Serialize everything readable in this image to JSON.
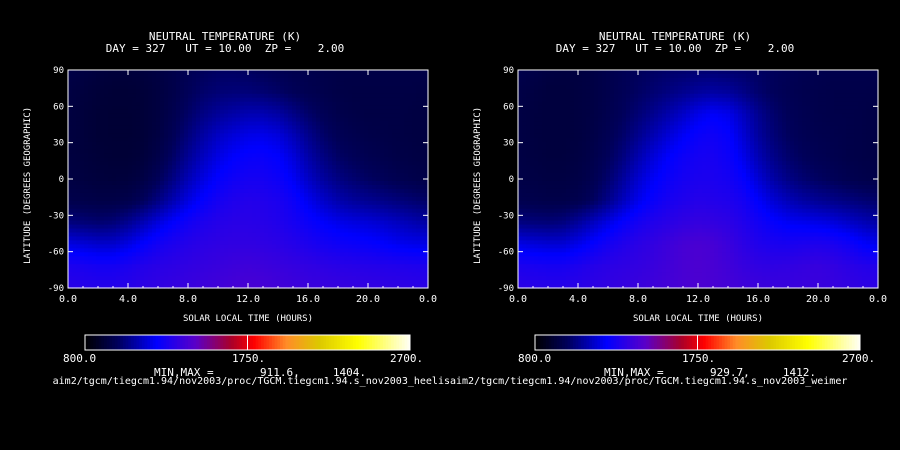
{
  "chart_data": [
    {
      "type": "heatmap",
      "title": "NEUTRAL TEMPERATURE (K)",
      "subtitle": "DAY = 327   UT = 10.00  ZP =    2.00",
      "xlabel": "SOLAR LOCAL TIME (HOURS)",
      "ylabel": "LATITUDE (DEGREES GEOGRAPHIC)",
      "xlim": [
        0,
        24
      ],
      "ylim": [
        -90,
        90
      ],
      "x_ticks": [
        "0.0",
        "4.0",
        "8.0",
        "12.0",
        "16.0",
        "20.0",
        "0.0"
      ],
      "y_ticks": [
        "90",
        "60",
        "30",
        "0",
        "-30",
        "-60",
        "-90"
      ],
      "colorbar": {
        "min": 800.0,
        "mid": 1750.0,
        "max": 2700.0,
        "labels": [
          "800.0",
          "1750.",
          "2700."
        ]
      },
      "minmax_text": "MIN,MAX =       911.6,     1404.",
      "path_text": "aim2/tgcm/tiegcm1.94/nov2003/proc/TGCM.tiegcm1.94.s_nov2003_heelis",
      "field": [
        [
          950,
          940,
          930,
          925,
          925,
          930,
          940,
          955,
          975,
          990,
          1000,
          1000,
          995,
          985,
          975,
          965,
          960,
          955,
          950,
          950,
          950,
          950,
          950,
          950,
          950
        ],
        [
          940,
          930,
          920,
          915,
          915,
          920,
          935,
          955,
          985,
          1010,
          1025,
          1030,
          1030,
          1020,
          1005,
          985,
          970,
          960,
          950,
          945,
          945,
          945,
          945,
          945,
          940
        ],
        [
          935,
          925,
          915,
          912,
          912,
          918,
          935,
          965,
          1005,
          1045,
          1075,
          1095,
          1110,
          1110,
          1090,
          1050,
          1010,
          980,
          960,
          950,
          945,
          945,
          945,
          940,
          935
        ],
        [
          935,
          925,
          915,
          912,
          912,
          918,
          940,
          980,
          1035,
          1090,
          1135,
          1165,
          1185,
          1190,
          1170,
          1120,
          1060,
          1010,
          980,
          965,
          955,
          950,
          945,
          940,
          935
        ],
        [
          935,
          928,
          920,
          915,
          915,
          925,
          955,
          1005,
          1070,
          1130,
          1180,
          1215,
          1235,
          1240,
          1220,
          1170,
          1100,
          1045,
          1005,
          985,
          970,
          960,
          950,
          945,
          940
        ],
        [
          940,
          935,
          928,
          925,
          928,
          945,
          985,
          1045,
          1115,
          1175,
          1225,
          1255,
          1270,
          1270,
          1250,
          1205,
          1140,
          1085,
          1045,
          1020,
          1000,
          985,
          970,
          960,
          950
        ],
        [
          960,
          955,
          950,
          950,
          960,
          990,
          1045,
          1110,
          1175,
          1230,
          1270,
          1295,
          1305,
          1300,
          1285,
          1250,
          1195,
          1145,
          1105,
          1080,
          1065,
          1050,
          1035,
          1020,
          1005
        ],
        [
          1040,
          1030,
          1020,
          1030,
          1065,
          1115,
          1170,
          1220,
          1260,
          1290,
          1310,
          1320,
          1320,
          1315,
          1300,
          1275,
          1245,
          1215,
          1190,
          1175,
          1165,
          1150,
          1130,
          1110,
          1090
        ],
        [
          1180,
          1165,
          1150,
          1150,
          1180,
          1225,
          1265,
          1290,
          1310,
          1325,
          1335,
          1340,
          1340,
          1335,
          1325,
          1310,
          1290,
          1270,
          1255,
          1245,
          1235,
          1220,
          1200,
          1190,
          1185
        ],
        [
          1290,
          1280,
          1270,
          1270,
          1285,
          1305,
          1320,
          1330,
          1340,
          1350,
          1360,
          1370,
          1375,
          1370,
          1360,
          1350,
          1340,
          1330,
          1320,
          1315,
          1310,
          1305,
          1300,
          1295,
          1290
        ],
        [
          1320,
          1315,
          1310,
          1310,
          1318,
          1330,
          1340,
          1350,
          1360,
          1370,
          1380,
          1392,
          1400,
          1395,
          1385,
          1375,
          1365,
          1360,
          1355,
          1350,
          1345,
          1340,
          1335,
          1330,
          1325
        ]
      ]
    },
    {
      "type": "heatmap",
      "title": "NEUTRAL TEMPERATURE (K)",
      "subtitle": "DAY = 327   UT = 10.00  ZP =    2.00",
      "xlabel": "SOLAR LOCAL TIME (HOURS)",
      "ylabel": "LATITUDE (DEGREES GEOGRAPHIC)",
      "xlim": [
        0,
        24
      ],
      "ylim": [
        -90,
        90
      ],
      "x_ticks": [
        "0.0",
        "4.0",
        "8.0",
        "12.0",
        "16.0",
        "20.0",
        "0.0"
      ],
      "y_ticks": [
        "90",
        "60",
        "30",
        "0",
        "-30",
        "-60",
        "-90"
      ],
      "colorbar": {
        "min": 800.0,
        "mid": 1750.0,
        "max": 2700.0,
        "labels": [
          "800.0",
          "1750.",
          "2700."
        ]
      },
      "minmax_text": "MIN,MAX =       929.7,     1412.",
      "path_text": "aim2/tgcm/tiegcm1.94/nov2003/proc/TGCM.tiegcm1.94.s_nov2003_weimer",
      "field": [
        [
          960,
          950,
          940,
          935,
          935,
          945,
          960,
          975,
          990,
          1000,
          1010,
          1015,
          1020,
          1020,
          1015,
          1010,
          1000,
          990,
          980,
          970,
          965,
          960,
          960,
          960,
          960
        ],
        [
          950,
          940,
          930,
          930,
          935,
          945,
          960,
          980,
          1000,
          1020,
          1040,
          1060,
          1080,
          1090,
          1080,
          1050,
          1015,
          990,
          975,
          965,
          960,
          955,
          955,
          955,
          950
        ],
        [
          945,
          935,
          930,
          930,
          935,
          945,
          965,
          990,
          1025,
          1060,
          1100,
          1140,
          1185,
          1210,
          1190,
          1130,
          1065,
          1015,
          985,
          970,
          960,
          955,
          955,
          950,
          945
        ],
        [
          945,
          935,
          930,
          930,
          935,
          950,
          975,
          1010,
          1060,
          1110,
          1160,
          1205,
          1240,
          1255,
          1230,
          1160,
          1085,
          1030,
          995,
          975,
          965,
          960,
          955,
          950,
          945
        ],
        [
          945,
          938,
          932,
          932,
          940,
          958,
          990,
          1040,
          1105,
          1165,
          1215,
          1250,
          1270,
          1275,
          1250,
          1190,
          1115,
          1055,
          1015,
          990,
          975,
          965,
          955,
          950,
          945
        ],
        [
          950,
          945,
          940,
          940,
          948,
          970,
          1015,
          1080,
          1150,
          1205,
          1245,
          1270,
          1285,
          1285,
          1270,
          1230,
          1160,
          1095,
          1050,
          1020,
          1000,
          985,
          970,
          960,
          955
        ],
        [
          965,
          960,
          955,
          955,
          965,
          995,
          1055,
          1125,
          1190,
          1240,
          1275,
          1295,
          1310,
          1305,
          1295,
          1270,
          1215,
          1160,
          1120,
          1090,
          1070,
          1055,
          1040,
          1025,
          1010
        ],
        [
          1045,
          1035,
          1030,
          1040,
          1080,
          1130,
          1180,
          1230,
          1270,
          1300,
          1320,
          1340,
          1350,
          1345,
          1330,
          1300,
          1265,
          1230,
          1205,
          1195,
          1185,
          1170,
          1145,
          1120,
          1095
        ],
        [
          1185,
          1170,
          1160,
          1160,
          1190,
          1230,
          1270,
          1300,
          1325,
          1345,
          1370,
          1395,
          1405,
          1395,
          1365,
          1330,
          1300,
          1285,
          1280,
          1290,
          1295,
          1285,
          1260,
          1220,
          1195
        ],
        [
          1290,
          1280,
          1275,
          1275,
          1290,
          1310,
          1325,
          1335,
          1345,
          1360,
          1380,
          1400,
          1410,
          1400,
          1380,
          1355,
          1340,
          1335,
          1340,
          1350,
          1355,
          1345,
          1325,
          1310,
          1300
        ],
        [
          1325,
          1320,
          1315,
          1315,
          1322,
          1332,
          1342,
          1352,
          1362,
          1375,
          1388,
          1400,
          1408,
          1402,
          1390,
          1378,
          1368,
          1362,
          1360,
          1362,
          1362,
          1355,
          1345,
          1335,
          1328
        ]
      ]
    }
  ]
}
